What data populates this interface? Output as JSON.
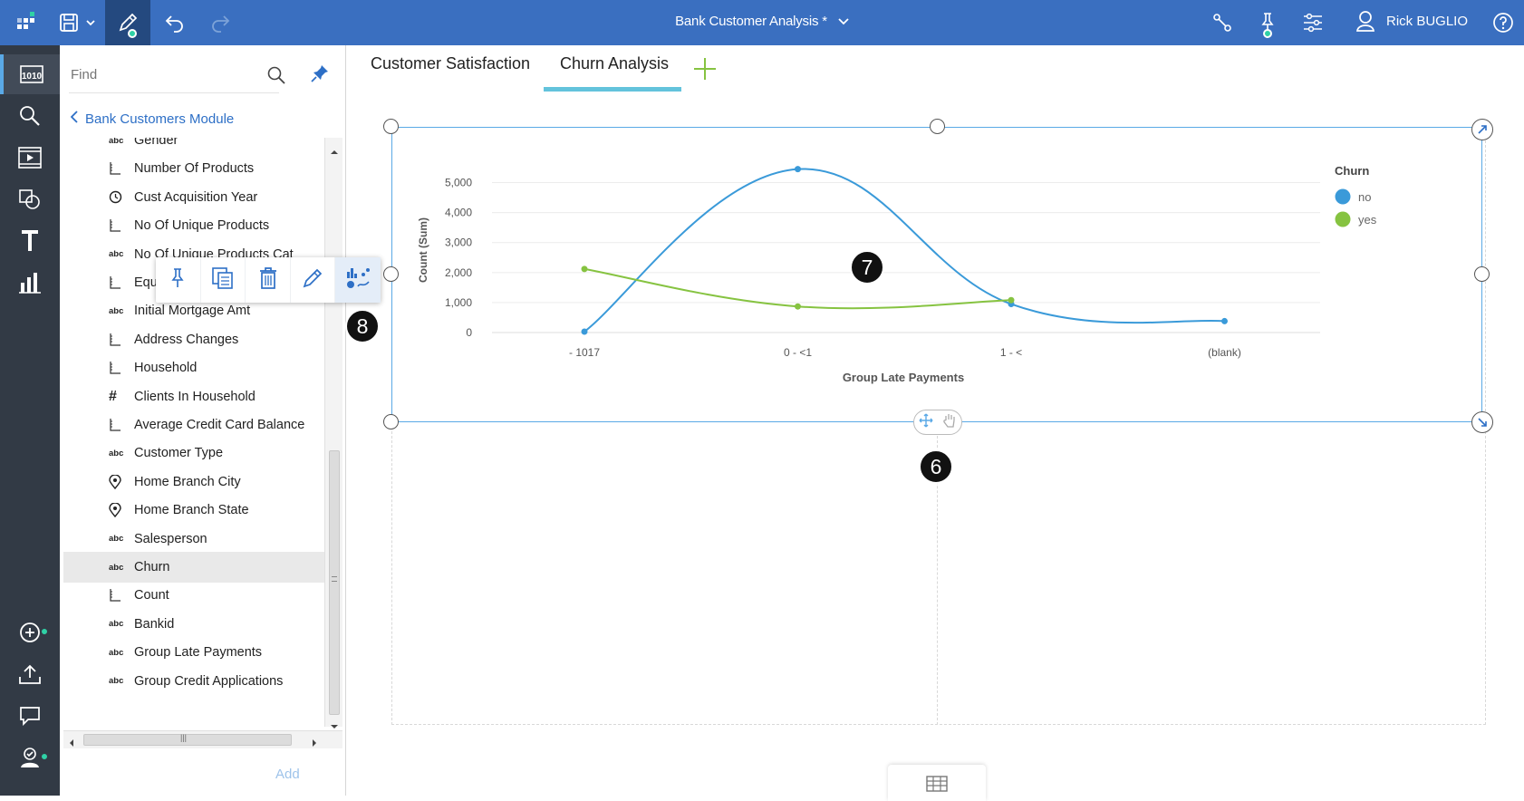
{
  "topbar": {
    "title": "Bank Customer Analysis *",
    "user_name": "Rick BUGLIO",
    "brand_color": "#3a6fc0",
    "icons": [
      "app-grid-icon",
      "save-icon",
      "chevron-down-icon",
      "pencil-icon",
      "undo-icon",
      "redo-icon",
      "chevron-down-icon",
      "connect-icon",
      "pin-icon",
      "filters-icon",
      "user-icon",
      "help-icon"
    ]
  },
  "leftnav": {
    "icons": [
      "data-sources-icon",
      "explore-icon",
      "video-icon",
      "shapes-icon",
      "text-icon",
      "visualizations-icon",
      "add-icon",
      "upload-icon",
      "comment-icon",
      "user-check-icon"
    ]
  },
  "panel": {
    "find_placeholder": "Find",
    "back_label": "Bank Customers Module",
    "add_label": "Add",
    "items": [
      {
        "label": "Gender",
        "icon": "abc"
      },
      {
        "label": "Number Of Products",
        "icon": "measure"
      },
      {
        "label": "Cust Acquisition Year",
        "icon": "clock"
      },
      {
        "label": "No Of Unique Products",
        "icon": "measure"
      },
      {
        "label": "No Of Unique Products Cat",
        "icon": "abc"
      },
      {
        "label": "Equity",
        "icon": "measure"
      },
      {
        "label": "Initial Mortgage Amt",
        "icon": "abc"
      },
      {
        "label": "Address Changes",
        "icon": "measure"
      },
      {
        "label": "Household",
        "icon": "measure"
      },
      {
        "label": "Clients In Household",
        "icon": "hash"
      },
      {
        "label": "Average Credit Card Balance",
        "icon": "measure"
      },
      {
        "label": "Customer Type",
        "icon": "abc"
      },
      {
        "label": "Home Branch City",
        "icon": "location"
      },
      {
        "label": "Home Branch State",
        "icon": "location"
      },
      {
        "label": "Salesperson",
        "icon": "abc"
      },
      {
        "label": "Churn",
        "icon": "abc"
      },
      {
        "label": "Count",
        "icon": "measure"
      },
      {
        "label": "Bankid",
        "icon": "abc"
      },
      {
        "label": "Group Late Payments",
        "icon": "abc"
      },
      {
        "label": "Group Credit Applications",
        "icon": "abc"
      }
    ],
    "selected_item": "Churn",
    "abc_glyph": "abc",
    "hash_glyph": "#",
    "scroll_glyph": "|||"
  },
  "popup": {
    "icons": [
      "pin-icon",
      "copy-icon",
      "trash-icon",
      "edit-icon",
      "visualization-icon"
    ]
  },
  "badges": {
    "b6": "6",
    "b7": "7",
    "b8": "8"
  },
  "tabs": [
    {
      "label": "Customer Satisfaction"
    },
    {
      "label": "Churn Analysis",
      "active": true
    }
  ],
  "chart_data": {
    "type": "line",
    "categories": [
      "- 1017",
      "0 - <1",
      "1 - <",
      "(blank)"
    ],
    "xlabel": "Group Late Payments",
    "ylabel": "Count (Sum)",
    "yticks": [
      "0",
      "1,000",
      "2,000",
      "3,000",
      "4,000",
      "5,000"
    ],
    "ylim": [
      0,
      5500
    ],
    "legend_title": "Churn",
    "legend_position": "right",
    "series": [
      {
        "name": "no",
        "color": "#3a9ad9",
        "values": [
          30,
          5450,
          950,
          380
        ]
      },
      {
        "name": "yes",
        "color": "#86c341",
        "values": [
          2120,
          870,
          1080,
          null
        ]
      }
    ]
  }
}
